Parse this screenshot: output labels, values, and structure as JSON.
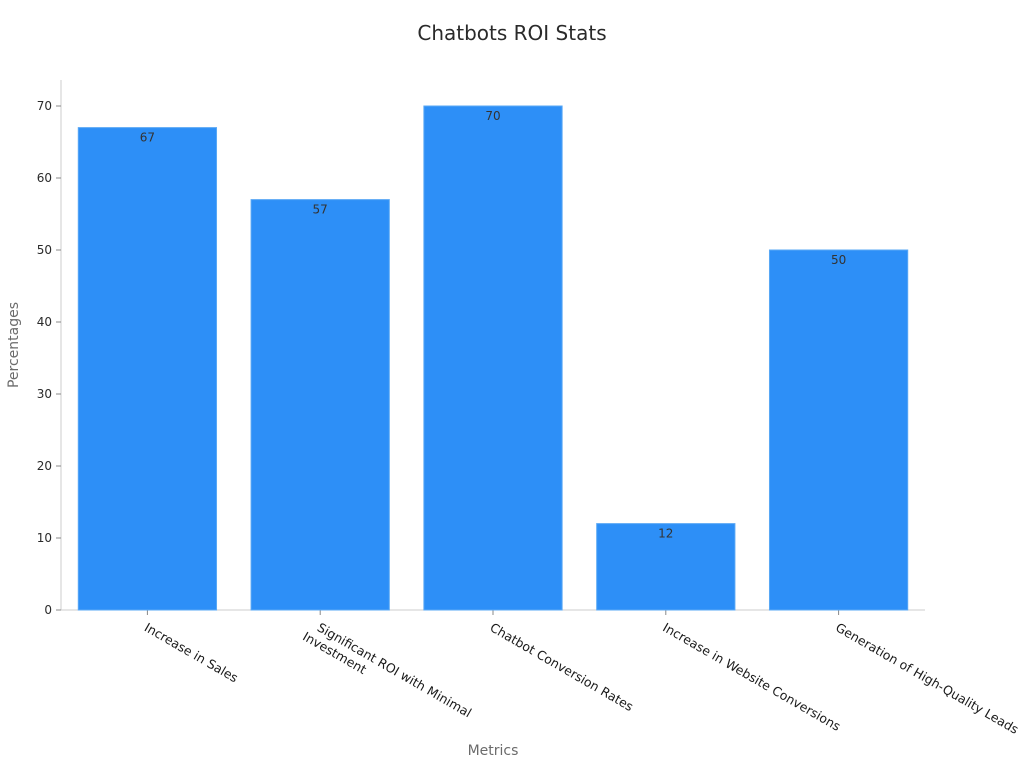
{
  "chart_data": {
    "type": "bar",
    "title": "Chatbots ROI Stats",
    "xlabel": "Metrics",
    "ylabel": "Percentages",
    "categories": [
      "Increase in Sales",
      "Significant ROI with Minimal Investment",
      "Chatbot Conversion Rates",
      "Increase in Website Conversions",
      "Generation of High-Quality Leads"
    ],
    "category_lines": [
      [
        "Increase in Sales"
      ],
      [
        "Significant ROI with Minimal",
        "Investment"
      ],
      [
        "Chatbot Conversion Rates"
      ],
      [
        "Increase in Website Conversions"
      ],
      [
        "Generation of High-Quality Leads"
      ]
    ],
    "values": [
      67,
      57,
      70,
      12,
      50
    ],
    "ylim": [
      0,
      70
    ],
    "yticks": [
      0,
      10,
      20,
      30,
      40,
      50,
      60,
      70
    ],
    "grid": false,
    "legend": "none",
    "colors": {
      "bar": "#2d8ff7",
      "bar_edge": "#5aa8f5",
      "axis": "#cccccc"
    }
  }
}
